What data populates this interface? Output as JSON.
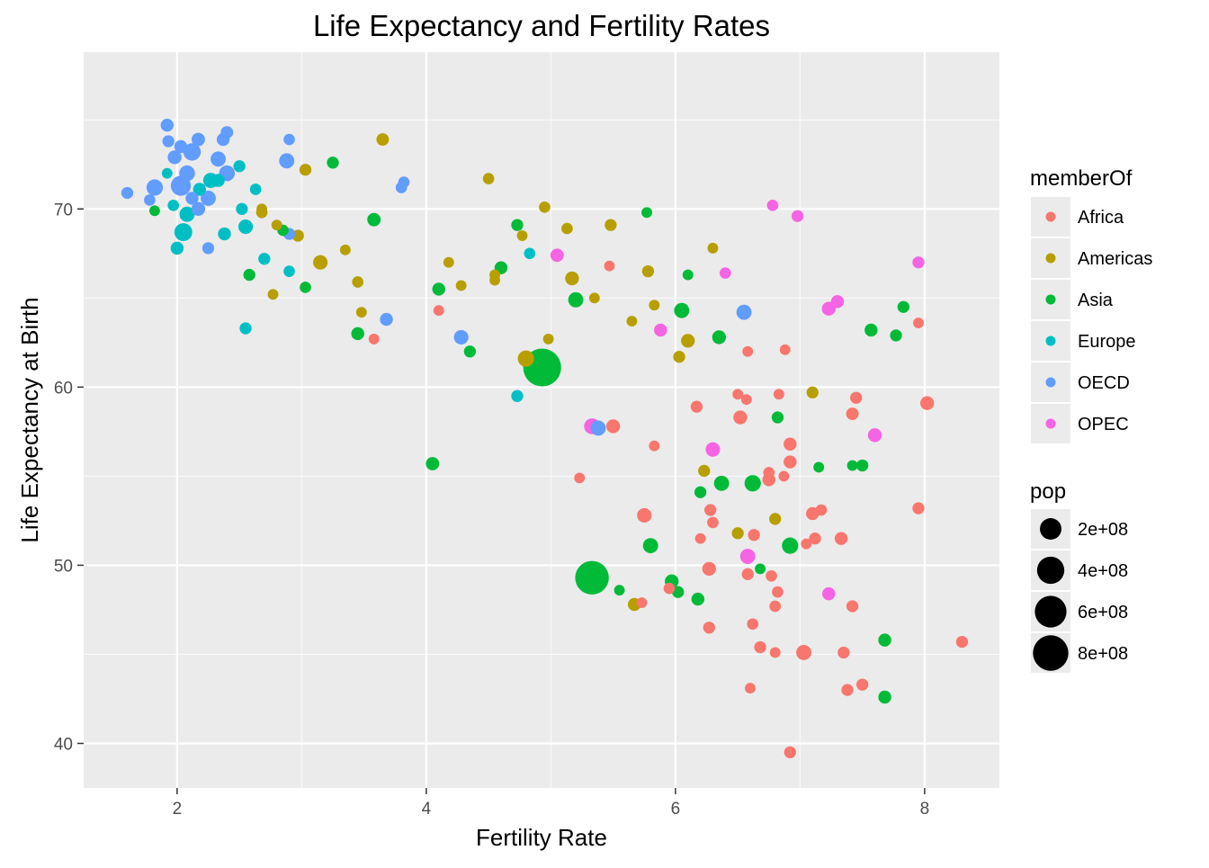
{
  "chart_data": {
    "type": "scatter",
    "title": "Life Expectancy and Fertility Rates",
    "xlabel": "Fertility Rate",
    "ylabel": "Life Expectancy at Birth",
    "xlim": [
      1.25,
      8.6
    ],
    "ylim": [
      37.5,
      78.8
    ],
    "x_ticks": [
      2,
      4,
      6,
      8
    ],
    "y_ticks": [
      40,
      50,
      60,
      70
    ],
    "x_tick_labels": [
      "2",
      "4",
      "6",
      "8"
    ],
    "y_tick_labels": [
      "40",
      "50",
      "60",
      "70"
    ],
    "grid": true,
    "legend_position": "right",
    "color_legend": {
      "title": "memberOf",
      "entries": [
        {
          "name": "Africa",
          "color": "#F8766D"
        },
        {
          "name": "Americas",
          "color": "#B79F00"
        },
        {
          "name": "Asia",
          "color": "#00BA38"
        },
        {
          "name": "Europe",
          "color": "#00BFC4"
        },
        {
          "name": "OECD",
          "color": "#619CFF"
        },
        {
          "name": "OPEC",
          "color": "#F564E3"
        }
      ]
    },
    "size_legend": {
      "title": "pop",
      "entries": [
        {
          "label": "2e+08",
          "value": 200
        },
        {
          "label": "4e+08",
          "value": 400
        },
        {
          "label": "6e+08",
          "value": 600
        },
        {
          "label": "8e+08",
          "value": 800
        }
      ]
    },
    "series": [
      {
        "name": "Africa",
        "color": "#F8766D",
        "points": [
          [
            4.1,
            64.3,
            10
          ],
          [
            3.58,
            62.7,
            10
          ],
          [
            5.47,
            66.8,
            10
          ],
          [
            5.23,
            54.9,
            10
          ],
          [
            5.73,
            47.9,
            10
          ],
          [
            5.5,
            57.8,
            40
          ],
          [
            5.75,
            52.8,
            50
          ],
          [
            5.83,
            56.7,
            10
          ],
          [
            5.95,
            48.7,
            15
          ],
          [
            6.17,
            58.9,
            20
          ],
          [
            6.2,
            51.5,
            10
          ],
          [
            6.27,
            49.8,
            40
          ],
          [
            6.28,
            53.1,
            20
          ],
          [
            6.3,
            52.4,
            15
          ],
          [
            6.27,
            46.5,
            20
          ],
          [
            6.52,
            58.3,
            40
          ],
          [
            6.5,
            59.6,
            10
          ],
          [
            6.57,
            59.3,
            10
          ],
          [
            6.58,
            62.0,
            10
          ],
          [
            6.58,
            49.5,
            20
          ],
          [
            6.6,
            43.1,
            10
          ],
          [
            6.62,
            46.7,
            15
          ],
          [
            6.63,
            51.7,
            20
          ],
          [
            6.68,
            45.4,
            20
          ],
          [
            6.75,
            55.2,
            15
          ],
          [
            6.75,
            54.8,
            30
          ],
          [
            6.77,
            49.4,
            15
          ],
          [
            6.8,
            47.7,
            15
          ],
          [
            6.8,
            45.1,
            10
          ],
          [
            6.82,
            48.5,
            15
          ],
          [
            6.83,
            59.6,
            10
          ],
          [
            6.87,
            55.0,
            10
          ],
          [
            6.88,
            62.1,
            10
          ],
          [
            6.92,
            56.8,
            30
          ],
          [
            6.92,
            55.8,
            30
          ],
          [
            6.92,
            39.5,
            20
          ],
          [
            7.03,
            45.1,
            60
          ],
          [
            7.05,
            51.2,
            10
          ],
          [
            7.1,
            52.9,
            30
          ],
          [
            7.12,
            51.5,
            20
          ],
          [
            7.17,
            53.1,
            15
          ],
          [
            7.33,
            51.5,
            30
          ],
          [
            7.35,
            45.1,
            20
          ],
          [
            7.38,
            43.0,
            20
          ],
          [
            7.42,
            47.7,
            20
          ],
          [
            7.42,
            58.5,
            25
          ],
          [
            7.45,
            59.4,
            20
          ],
          [
            7.5,
            43.3,
            20
          ],
          [
            7.95,
            63.6,
            10
          ],
          [
            7.95,
            53.2,
            20
          ],
          [
            8.02,
            59.1,
            40
          ],
          [
            8.3,
            45.7,
            20
          ]
        ]
      },
      {
        "name": "Americas",
        "color": "#B79F00",
        "points": [
          [
            2.68,
            69.8,
            15
          ],
          [
            2.68,
            70.0,
            10
          ],
          [
            2.8,
            69.1,
            10
          ],
          [
            2.77,
            65.2,
            10
          ],
          [
            2.97,
            68.5,
            20
          ],
          [
            3.03,
            72.2,
            20
          ],
          [
            3.15,
            67.0,
            50
          ],
          [
            3.35,
            67.7,
            10
          ],
          [
            3.45,
            65.9,
            15
          ],
          [
            3.48,
            64.2,
            10
          ],
          [
            3.65,
            73.9,
            25
          ],
          [
            4.18,
            67.0,
            10
          ],
          [
            4.28,
            65.7,
            10
          ],
          [
            4.5,
            71.7,
            15
          ],
          [
            4.55,
            66.3,
            10
          ],
          [
            4.55,
            66.0,
            10
          ],
          [
            4.77,
            68.5,
            10
          ],
          [
            4.8,
            61.6,
            80
          ],
          [
            4.95,
            70.1,
            15
          ],
          [
            4.98,
            62.7,
            10
          ],
          [
            5.13,
            68.9,
            15
          ],
          [
            5.17,
            66.1,
            40
          ],
          [
            5.35,
            65.0,
            10
          ],
          [
            5.48,
            69.1,
            20
          ],
          [
            5.65,
            63.7,
            10
          ],
          [
            5.67,
            47.8,
            30
          ],
          [
            5.78,
            66.5,
            20
          ],
          [
            5.83,
            64.6,
            10
          ],
          [
            6.03,
            61.7,
            20
          ],
          [
            6.1,
            62.6,
            40
          ],
          [
            6.23,
            55.3,
            20
          ],
          [
            6.3,
            67.8,
            10
          ],
          [
            6.5,
            51.8,
            20
          ],
          [
            6.8,
            52.6,
            20
          ],
          [
            7.1,
            59.7,
            20
          ]
        ]
      },
      {
        "name": "Asia",
        "color": "#00BA38",
        "points": [
          [
            1.82,
            69.9,
            10
          ],
          [
            2.58,
            66.3,
            20
          ],
          [
            2.85,
            68.8,
            15
          ],
          [
            3.03,
            65.6,
            15
          ],
          [
            3.25,
            72.6,
            20
          ],
          [
            3.45,
            63.0,
            30
          ],
          [
            3.58,
            69.4,
            35
          ],
          [
            4.05,
            55.7,
            35
          ],
          [
            4.1,
            65.5,
            30
          ],
          [
            4.35,
            62.0,
            20
          ],
          [
            4.6,
            66.7,
            30
          ],
          [
            4.73,
            69.1,
            20
          ],
          [
            4.93,
            61.1,
            950
          ],
          [
            5.2,
            64.9,
            60
          ],
          [
            5.33,
            49.3,
            700
          ],
          [
            5.55,
            48.6,
            10
          ],
          [
            5.77,
            69.8,
            10
          ],
          [
            5.8,
            51.1,
            60
          ],
          [
            5.97,
            49.1,
            40
          ],
          [
            6.02,
            48.5,
            20
          ],
          [
            6.05,
            64.3,
            60
          ],
          [
            6.1,
            66.3,
            10
          ],
          [
            6.18,
            48.1,
            30
          ],
          [
            6.2,
            54.1,
            20
          ],
          [
            6.35,
            62.8,
            40
          ],
          [
            6.37,
            54.6,
            60
          ],
          [
            6.62,
            54.6,
            80
          ],
          [
            6.68,
            49.8,
            10
          ],
          [
            6.82,
            58.3,
            20
          ],
          [
            6.92,
            51.1,
            80
          ],
          [
            7.15,
            55.5,
            10
          ],
          [
            7.42,
            55.6,
            10
          ],
          [
            7.5,
            55.6,
            20
          ],
          [
            7.57,
            63.2,
            30
          ],
          [
            7.68,
            45.8,
            30
          ],
          [
            7.68,
            42.6,
            30
          ],
          [
            7.77,
            62.9,
            20
          ],
          [
            7.83,
            64.5,
            20
          ]
        ]
      },
      {
        "name": "Europe",
        "color": "#00BFC4",
        "points": [
          [
            1.92,
            72.0,
            10
          ],
          [
            1.97,
            70.2,
            15
          ],
          [
            2.0,
            67.8,
            30
          ],
          [
            2.05,
            68.7,
            110
          ],
          [
            2.08,
            69.7,
            60
          ],
          [
            2.18,
            71.1,
            30
          ],
          [
            2.27,
            71.6,
            60
          ],
          [
            2.33,
            71.6,
            30
          ],
          [
            2.38,
            68.6,
            30
          ],
          [
            2.5,
            72.4,
            20
          ],
          [
            2.52,
            70.0,
            20
          ],
          [
            2.55,
            69.0,
            50
          ],
          [
            2.55,
            63.3,
            20
          ],
          [
            2.63,
            71.1,
            15
          ],
          [
            2.7,
            67.2,
            20
          ],
          [
            2.9,
            66.5,
            15
          ],
          [
            4.73,
            59.5,
            20
          ],
          [
            4.83,
            67.5,
            15
          ]
        ]
      },
      {
        "name": "OECD",
        "color": "#619CFF",
        "points": [
          [
            1.6,
            70.9,
            20
          ],
          [
            1.78,
            70.5,
            15
          ],
          [
            1.82,
            71.2,
            80
          ],
          [
            1.92,
            74.7,
            30
          ],
          [
            1.93,
            73.8,
            20
          ],
          [
            1.98,
            72.9,
            40
          ],
          [
            2.03,
            71.3,
            160
          ],
          [
            2.03,
            73.5,
            30
          ],
          [
            2.08,
            72.0,
            70
          ],
          [
            2.12,
            73.2,
            100
          ],
          [
            2.12,
            70.6,
            30
          ],
          [
            2.17,
            70.0,
            40
          ],
          [
            2.17,
            73.9,
            35
          ],
          [
            2.25,
            70.6,
            60
          ],
          [
            2.25,
            67.8,
            20
          ],
          [
            2.33,
            72.8,
            60
          ],
          [
            2.37,
            73.9,
            30
          ],
          [
            2.4,
            74.3,
            25
          ],
          [
            2.4,
            72.0,
            70
          ],
          [
            2.88,
            72.7,
            60
          ],
          [
            2.9,
            73.9,
            15
          ],
          [
            2.9,
            68.6,
            20
          ],
          [
            3.8,
            71.2,
            15
          ],
          [
            3.82,
            71.5,
            15
          ],
          [
            3.68,
            63.8,
            30
          ],
          [
            4.28,
            62.8,
            50
          ],
          [
            5.38,
            57.7,
            60
          ],
          [
            6.55,
            64.2,
            60
          ]
        ]
      },
      {
        "name": "OPEC",
        "color": "#F564E3",
        "points": [
          [
            5.05,
            67.4,
            35
          ],
          [
            5.33,
            57.8,
            70
          ],
          [
            5.88,
            63.2,
            30
          ],
          [
            6.3,
            56.5,
            50
          ],
          [
            6.4,
            66.4,
            15
          ],
          [
            6.58,
            50.5,
            60
          ],
          [
            6.78,
            70.2,
            15
          ],
          [
            6.98,
            69.6,
            20
          ],
          [
            7.23,
            64.4,
            40
          ],
          [
            7.23,
            48.4,
            30
          ],
          [
            7.3,
            64.8,
            30
          ],
          [
            7.6,
            57.3,
            40
          ],
          [
            7.95,
            67.0,
            20
          ]
        ]
      }
    ]
  }
}
